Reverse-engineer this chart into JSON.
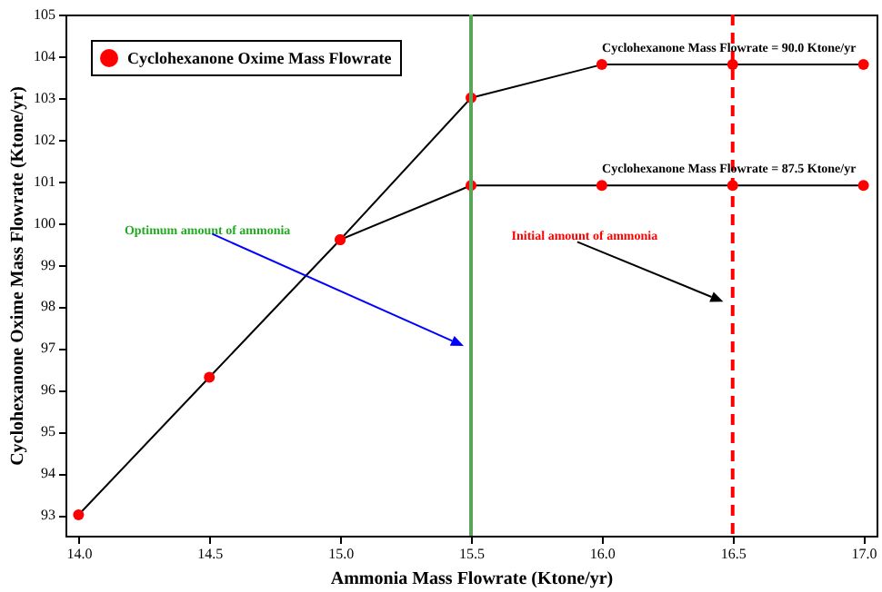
{
  "chart_data": {
    "type": "line",
    "xlabel": "Ammonia Mass Flowrate (Ktone/yr)",
    "ylabel": "Cyclohexanone Oxime Mass Flowrate (Ktone/yr)",
    "xlim": [
      13.95,
      17.05
    ],
    "xticks": [
      {
        "value": 14,
        "label": "14.0"
      },
      {
        "value": 14.5,
        "label": "14.5"
      },
      {
        "value": 15,
        "label": "15.0"
      },
      {
        "value": 15.5,
        "label": "15.5"
      },
      {
        "value": 16,
        "label": "16.0"
      },
      {
        "value": 16.5,
        "label": "16.5"
      },
      {
        "value": 17,
        "label": "17.0"
      }
    ],
    "ylim": [
      92.5,
      105
    ],
    "yticks": [
      93,
      94,
      95,
      96,
      97,
      98,
      99,
      100,
      101,
      102,
      103,
      104,
      105
    ],
    "series": [
      {
        "name": "Cyclohexanone Oxime Mass Flowrate",
        "color": "#ff0000",
        "x": [
          14,
          14.5,
          15,
          15.5,
          16,
          16.5,
          17
        ],
        "values": [
          93.0,
          96.3,
          99.6,
          103.0,
          103.8,
          103.8,
          103.8
        ]
      },
      {
        "color": "#ff0000",
        "x": [
          15,
          15.5,
          16,
          16.5,
          17
        ],
        "values": [
          99.6,
          100.9,
          100.9,
          100.9,
          100.9
        ]
      }
    ],
    "marker": "circle",
    "line_style": "solid",
    "legend": "top left",
    "grid": false,
    "ref_lines": [
      {
        "axis": "x",
        "value": 15.5,
        "color": "#5aa55a",
        "line_style": "solid"
      },
      {
        "axis": "x",
        "value": 16.5,
        "color": "#ff0000",
        "line_style": "dashed"
      }
    ],
    "annotations": [
      {
        "text": "Cyclohexanone Mass Flowrate = 90.0 Ktone/yr",
        "x": 16.5,
        "y": 103.8
      },
      {
        "text": "Cyclohexanone Mass Flowrate = 87.5 Ktone/yr",
        "x": 16.5,
        "y": 100.9
      },
      "Optimum amount of ammonia",
      "Initial amount of ammonia"
    ]
  }
}
